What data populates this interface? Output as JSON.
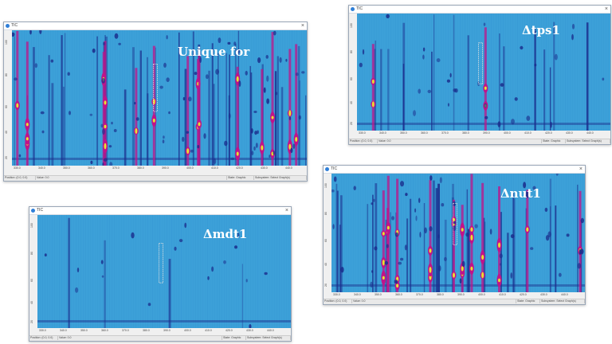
{
  "colors": {
    "background": "#3ca0d8",
    "peak_low": "#1a2c8c",
    "peak_mid": "#c0138a",
    "peak_high": "#e8e030"
  },
  "windows": [
    {
      "id": "wt",
      "title": "TIC",
      "overlay_label": "Unique for",
      "close_icon": "×",
      "y_ticks": [
        "100",
        "80",
        "60",
        "40",
        "20"
      ],
      "x_ticks": [
        "330.0",
        "340.0",
        "350.0",
        "360.0",
        "370.0",
        "380.0",
        "390.0",
        "400.0",
        "410.0",
        "420.0",
        "430.0",
        "440.0"
      ],
      "status": {
        "position": "Position: (0.0, 0.0)",
        "value": "Value: 0.0",
        "state": "State: Graphic",
        "subsystem": "Subsystem: Select Graph(s)"
      }
    },
    {
      "id": "tps1",
      "title": "TIC",
      "overlay_label": "Δtps1",
      "close_icon": "×",
      "y_ticks": [
        "100",
        "80",
        "60",
        "40",
        "20"
      ],
      "x_ticks": [
        "330.0",
        "340.0",
        "350.0",
        "360.0",
        "370.0",
        "380.0",
        "390.0",
        "400.0",
        "410.0",
        "420.0",
        "430.0",
        "440.0"
      ],
      "status": {
        "position": "Position: (0.0, 0.0)",
        "value": "Value: 0.0",
        "state": "State: Graphic",
        "subsystem": "Subsystem: Select Graph(s)"
      }
    },
    {
      "id": "mdt1",
      "title": "TIC",
      "overlay_label": "Δmdt1",
      "close_icon": "×",
      "y_ticks": [
        "100",
        "80",
        "60",
        "40",
        "20"
      ],
      "x_ticks": [
        "330.0",
        "340.0",
        "350.0",
        "360.0",
        "370.0",
        "380.0",
        "390.0",
        "400.0",
        "410.0",
        "420.0",
        "430.0",
        "440.0"
      ],
      "status": {
        "position": "Position: (0.0, 0.0)",
        "value": "Value: 0.0",
        "state": "State: Graphic",
        "subsystem": "Subsystem: Select Graph(s)"
      }
    },
    {
      "id": "nut1",
      "title": "TIC",
      "overlay_label": "Δnut1",
      "close_icon": "×",
      "y_ticks": [
        "100",
        "80",
        "60",
        "40",
        "20"
      ],
      "x_ticks": [
        "330.0",
        "340.0",
        "350.0",
        "360.0",
        "370.0",
        "380.0",
        "390.0",
        "400.0",
        "410.0",
        "420.0",
        "430.0",
        "440.0"
      ],
      "status": {
        "position": "Position: (0.0, 0.0)",
        "value": "Value: 0.0",
        "state": "State: Graphic",
        "subsystem": "Subsystem: Select Graph(s)"
      }
    }
  ]
}
